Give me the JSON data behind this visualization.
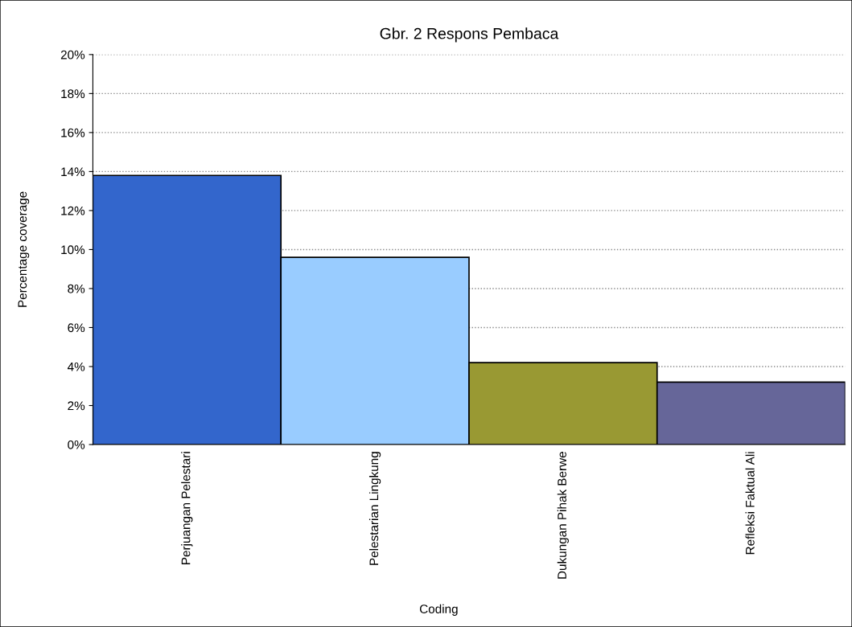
{
  "chart_data": {
    "type": "bar",
    "title": "Gbr. 2 Respons Pembaca",
    "xlabel": "Coding",
    "ylabel": "Percentage coverage",
    "categories": [
      "Perjuangan Pelestari",
      "Pelestarian Lingkung",
      "Dukungan Pihak Berwe",
      "Refleksi Faktual Ali"
    ],
    "values": [
      13.8,
      9.6,
      4.2,
      3.2
    ],
    "colors": [
      "#3366cc",
      "#99ccff",
      "#999933",
      "#666699"
    ],
    "ylim": [
      0,
      20
    ],
    "yticks": [
      {
        "value": 0,
        "label": "0%"
      },
      {
        "value": 2,
        "label": "2%"
      },
      {
        "value": 4,
        "label": "4%"
      },
      {
        "value": 6,
        "label": "6%"
      },
      {
        "value": 8,
        "label": "8%"
      },
      {
        "value": 10,
        "label": "10%"
      },
      {
        "value": 12,
        "label": "12%"
      },
      {
        "value": 14,
        "label": "14%"
      },
      {
        "value": 16,
        "label": "16%"
      },
      {
        "value": 18,
        "label": "18%"
      },
      {
        "value": 20,
        "label": "20%"
      }
    ],
    "grid": "y"
  }
}
